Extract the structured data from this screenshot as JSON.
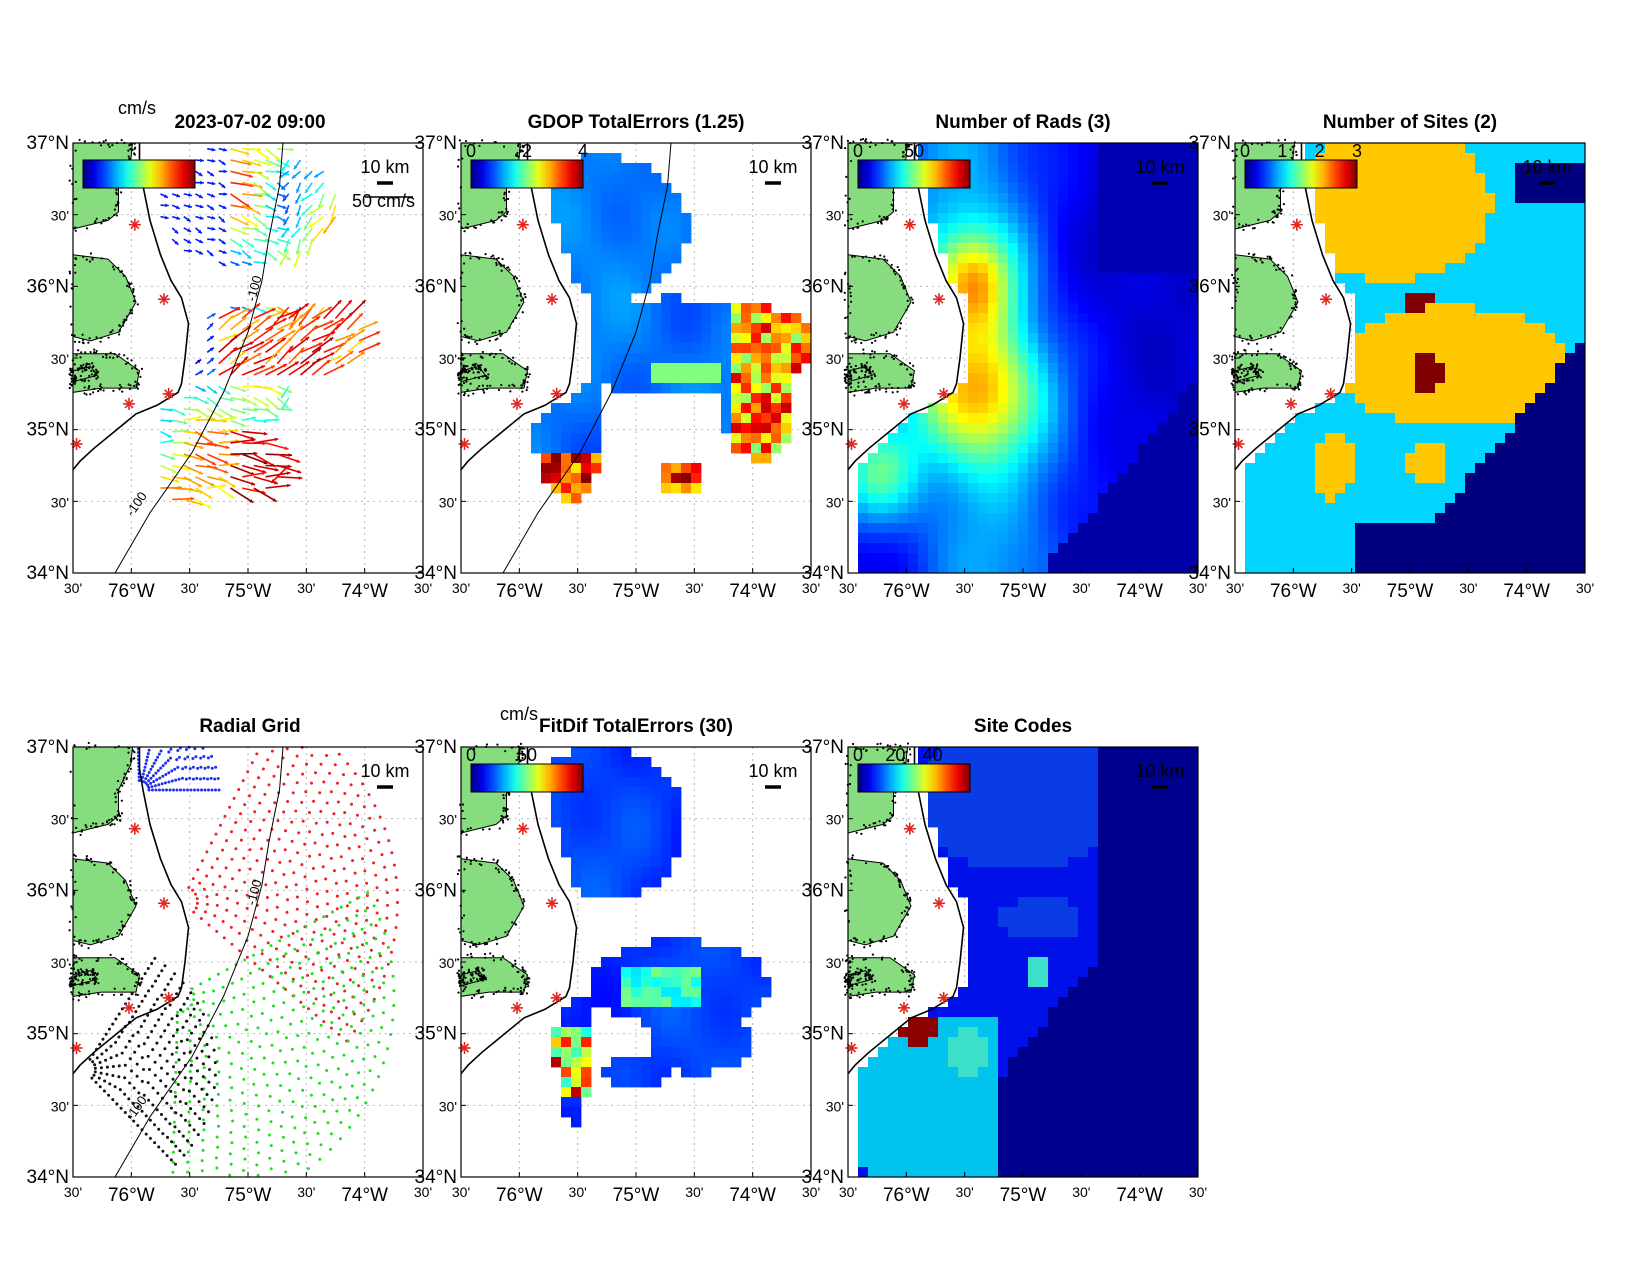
{
  "figure": {
    "colors": {
      "land": "#86dc7e",
      "coast": "#000000",
      "site_marker": "#e32620",
      "grid": "#b7b7b7"
    },
    "axis_labels": {
      "lat_major": [
        "37°N",
        "36°N",
        "35°N",
        "34°N"
      ],
      "lat_minor": "30'",
      "lon": [
        "30'",
        "76°W",
        "30'",
        "75°W",
        "30'",
        "74°W",
        "30'"
      ]
    },
    "scale_bar_label": "10 km",
    "isobath_label": "-100"
  },
  "chart_data": [
    {
      "type": "vector",
      "title": "2023-07-02 09:00",
      "colorbar": {
        "label": "cm/s",
        "palette": "jet"
      },
      "reference_vector_label": "50 cm/s",
      "xlim": [
        -76.5,
        -73.5
      ],
      "ylim": [
        34,
        37
      ],
      "site_markers": [
        [
          -75.97,
          36.43
        ],
        [
          -75.72,
          35.91
        ],
        [
          -75.68,
          35.25
        ],
        [
          -76.02,
          35.18
        ],
        [
          -76.47,
          34.9
        ]
      ]
    },
    {
      "type": "heatmap",
      "title": "GDOP TotalErrors (1.25)",
      "colorbar": {
        "ticks": [
          "0",
          "2",
          "4"
        ],
        "range": [
          0,
          4
        ]
      },
      "contour_label": "1.25",
      "xlim": [
        -76.5,
        -73.5
      ],
      "ylim": [
        34,
        37
      ]
    },
    {
      "type": "heatmap",
      "title": "Number of Rads (3)",
      "colorbar": {
        "ticks": [
          "0",
          "50"
        ],
        "range": [
          0,
          100
        ]
      },
      "contour_label": "3",
      "xlim": [
        -76.5,
        -73.5
      ],
      "ylim": [
        34,
        37
      ]
    },
    {
      "type": "heatmap",
      "title": "Number of Sites (2)",
      "colorbar": {
        "ticks": [
          "0",
          "1",
          "2",
          "3"
        ],
        "range": [
          0,
          3
        ]
      },
      "contour_label": "2",
      "category_colors": [
        "#00007f",
        "#00d4ff",
        "#ffc800",
        "#7f0000"
      ],
      "xlim": [
        -76.5,
        -73.5
      ],
      "ylim": [
        34,
        37
      ]
    },
    {
      "type": "scatter",
      "title": "Radial Grid",
      "series_colors": [
        "#1f2ff0",
        "#ee2222",
        "#22dd22",
        "#111111"
      ],
      "xlim": [
        -76.5,
        -73.5
      ],
      "ylim": [
        34,
        37
      ]
    },
    {
      "type": "heatmap",
      "title": "FitDif TotalErrors (30)",
      "colorbar": {
        "label": "cm/s",
        "ticks": [
          "0",
          "50"
        ],
        "range": [
          0,
          100
        ]
      },
      "contour_label": "30",
      "xlim": [
        -76.5,
        -73.5
      ],
      "ylim": [
        34,
        37
      ]
    },
    {
      "type": "heatmap",
      "title": "Site Codes",
      "colorbar": {
        "ticks": [
          "0",
          "20",
          "40"
        ],
        "range": [
          0,
          60
        ]
      },
      "xlim": [
        -76.5,
        -73.5
      ],
      "ylim": [
        34,
        37
      ]
    }
  ]
}
